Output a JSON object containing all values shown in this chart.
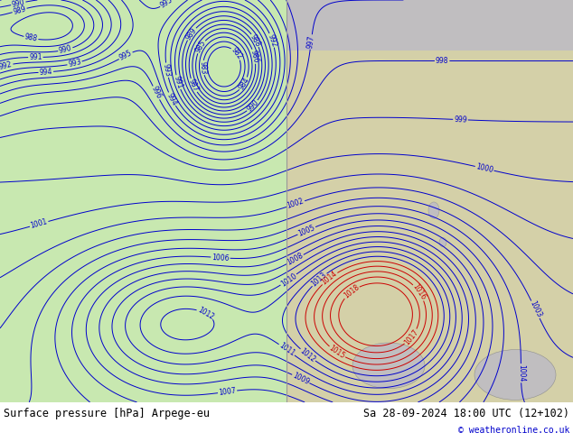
{
  "title_left": "Surface pressure [hPa] Arpege-eu",
  "title_right": "Sa 28-09-2024 18:00 UTC (12+102)",
  "copyright": "© weatheronline.co.uk",
  "left_bg": "#c8e8b0",
  "right_land": "#d4d0a8",
  "right_sea_top": "#c0bec0",
  "right_sea_bottom": "#c0bec0",
  "border_gray": "#909090",
  "border_black": "#000000",
  "isobar_blue": "#0000cc",
  "isobar_red": "#cc0000",
  "isobar_black": "#000000",
  "fig_width": 6.34,
  "fig_height": 4.9,
  "dpi": 100
}
